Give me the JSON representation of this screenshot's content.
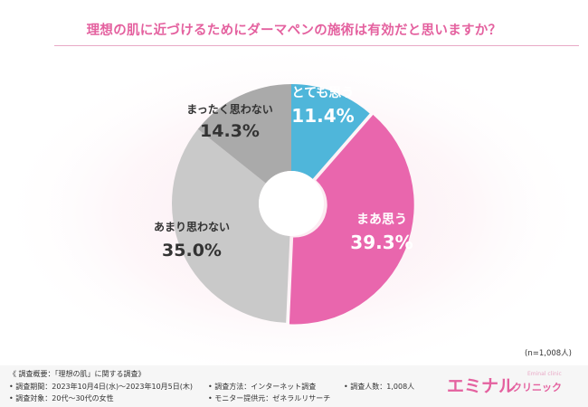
{
  "title": "理想の肌に近づけるためにダーマペンの施術は有効だと思いますか？",
  "colors": {
    "title": "#e4619f",
    "slice_1": "#4fb6da",
    "slice_2": "#e966ad",
    "slice_3": "#c9c9c9",
    "slice_4": "#aaaaaa"
  },
  "chart_data": {
    "type": "pie",
    "donut": true,
    "start": "top",
    "direction": "clockwise",
    "slices": [
      {
        "label": "とても思う",
        "value": 11.4,
        "display": "11.4%",
        "color": "#4fb6da",
        "text_color": "#ffffff"
      },
      {
        "label": "まあ思う",
        "value": 39.3,
        "display": "39.3%",
        "color": "#e966ad",
        "text_color": "#ffffff"
      },
      {
        "label": "あまり思わない",
        "value": 35.0,
        "display": "35.0%",
        "color": "#c9c9c9",
        "text_color": "#333333"
      },
      {
        "label": "まったく思わない",
        "value": 14.3,
        "display": "14.3%",
        "color": "#aaaaaa",
        "text_color": "#333333"
      }
    ]
  },
  "sample_note": "(n=1,008人)",
  "footer": {
    "overview": "《 調査概要：「理想の肌」に関する調査》",
    "period": "• 調査期間：2023年10月4日(水)～2023年10月5日(木)",
    "method": "• 調査方法：インターネット調査",
    "respondents": "• 調査人数：1,008人",
    "target": "• 調査対象：20代～30代の女性",
    "provider": "• モニター提供元：ゼネラルリサーチ"
  },
  "brand": {
    "name": "エミナル",
    "suffix": "クリニック",
    "tagline": "Eminal clinic"
  }
}
